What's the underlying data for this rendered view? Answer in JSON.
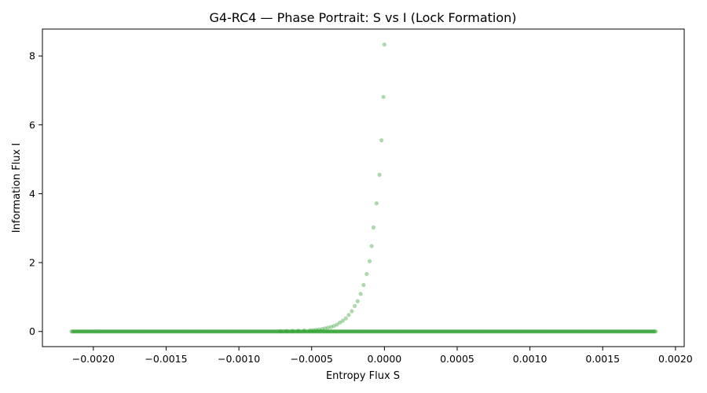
{
  "chart_data": {
    "type": "scatter",
    "title": "G4-RC4 — Phase Portrait: S vs I (Lock Formation)",
    "xlabel": "Entropy Flux S",
    "ylabel": "Information Flux I",
    "xlim": [
      -0.00235,
      0.00206
    ],
    "ylim": [
      -0.44,
      8.78
    ],
    "grid": false,
    "legend": "none",
    "marker_color": "#2ca02c",
    "x_ticks": [
      -0.002,
      -0.0015,
      -0.001,
      -0.0005,
      0.0,
      0.0005,
      0.001,
      0.0015,
      0.002
    ],
    "x_tick_labels": [
      "−0.0020",
      "−0.0015",
      "−0.0010",
      "−0.0005",
      "0.0000",
      "0.0005",
      "0.0010",
      "0.0015",
      "0.0020"
    ],
    "y_ticks": [
      0,
      2,
      4,
      6,
      8
    ],
    "y_tick_labels": [
      "0",
      "2",
      "4",
      "6",
      "8"
    ],
    "series": [
      {
        "x": [
          0.0,
          -6.8e-06,
          -2e-05,
          -3.4e-05,
          -5.4e-05,
          -7.5e-05,
          -8.8e-05,
          -0.000102,
          -0.000122,
          -0.000143,
          -0.000163,
          -0.000184,
          -0.000204,
          -0.000224,
          -0.000245,
          -0.000265,
          -0.000286,
          -0.000306,
          -0.000326,
          -0.000347,
          -0.000367,
          -0.000388,
          -0.000408,
          -0.000428,
          -0.000449,
          -0.000469,
          -0.00049,
          -0.00051,
          -0.000551,
          -0.000592,
          -0.000632,
          -0.000673,
          -0.000714
        ],
        "y": [
          8.33,
          6.81,
          5.55,
          4.55,
          3.72,
          3.02,
          2.48,
          2.04,
          1.67,
          1.35,
          1.09,
          0.88,
          0.74,
          0.59,
          0.48,
          0.38,
          0.31,
          0.26,
          0.2,
          0.16,
          0.13,
          0.11,
          0.09,
          0.07,
          0.06,
          0.05,
          0.04,
          0.035,
          0.03,
          0.025,
          0.02,
          0.015,
          0.01
        ]
      },
      {
        "x_start": -0.00215,
        "x_end": 0.00187,
        "y_value": 0.0,
        "sweeps": 3,
        "points_per_sweep": 220
      }
    ]
  }
}
